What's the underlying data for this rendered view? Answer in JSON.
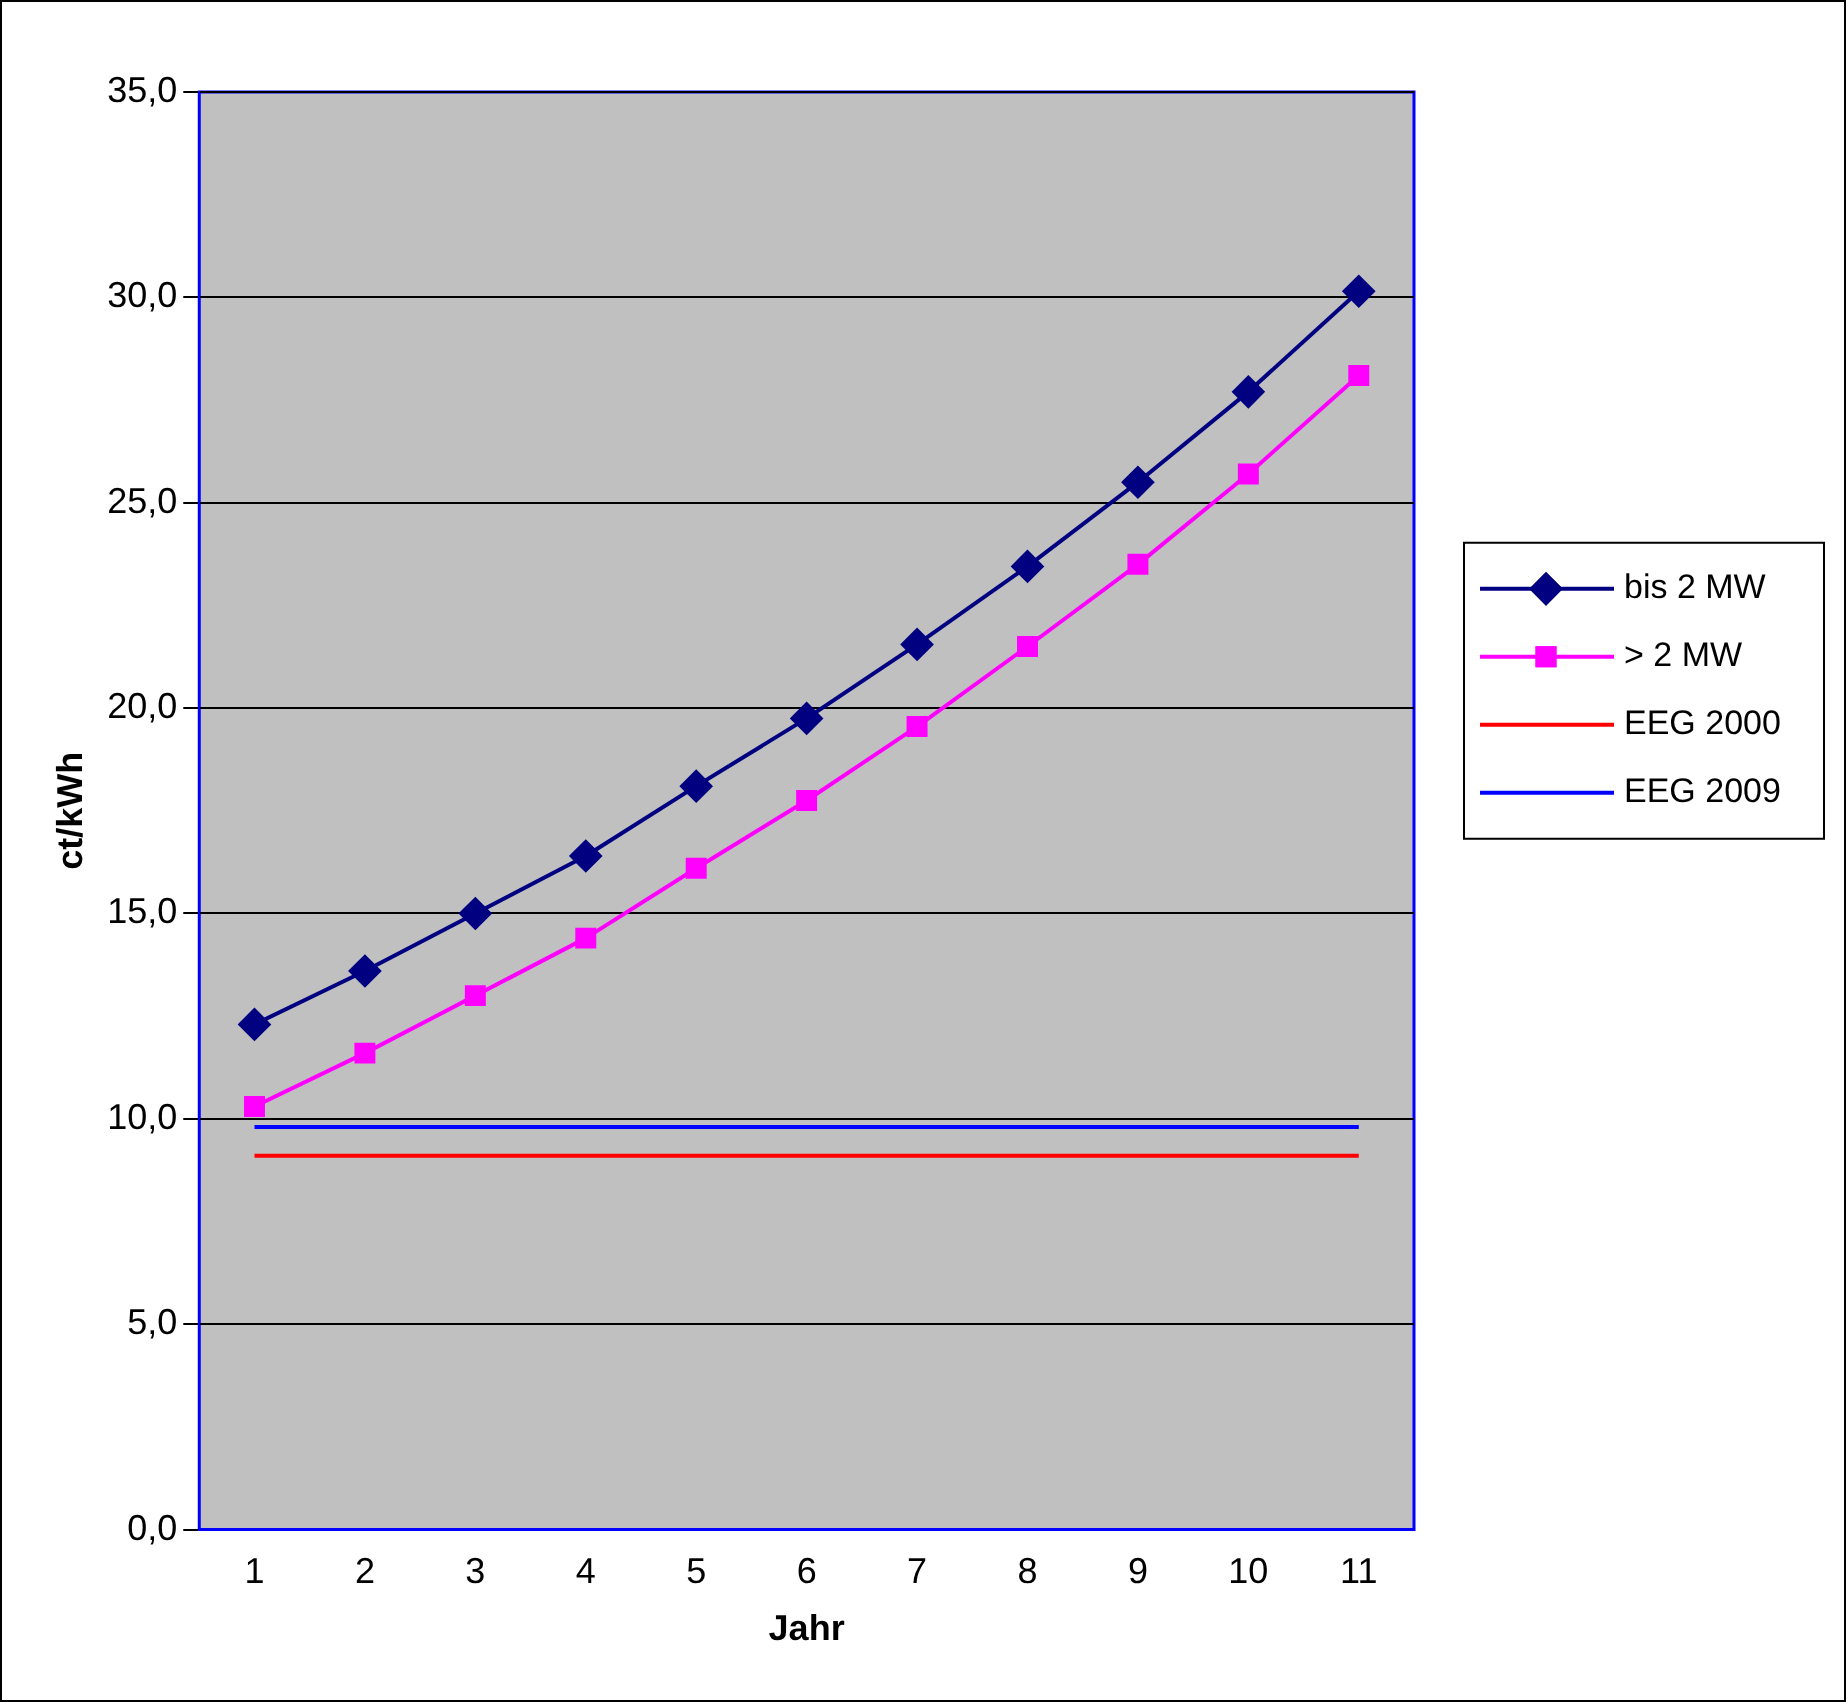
{
  "chart_data": {
    "type": "line",
    "xlabel": "Jahr",
    "ylabel": "ct/kWh",
    "categories": [
      "1",
      "2",
      "3",
      "4",
      "5",
      "6",
      "7",
      "8",
      "9",
      "10",
      "11"
    ],
    "series": [
      {
        "name": "bis 2 MW",
        "color": "#000080",
        "marker": "diamond",
        "values": [
          12.3,
          13.6,
          15.0,
          16.4,
          18.1,
          19.75,
          21.55,
          23.45,
          25.5,
          27.7,
          30.15
        ]
      },
      {
        "name": "> 2 MW",
        "color": "#ff00ff",
        "marker": "square",
        "values": [
          10.3,
          11.6,
          13.0,
          14.4,
          16.1,
          17.75,
          19.55,
          21.5,
          23.5,
          25.7,
          28.1
        ]
      },
      {
        "name": "EEG 2000",
        "color": "#ff0000",
        "marker": "none",
        "values": [
          9.1,
          9.1,
          9.1,
          9.1,
          9.1,
          9.1,
          9.1,
          9.1,
          9.1,
          9.1,
          9.1
        ]
      },
      {
        "name": "EEG 2009",
        "color": "#0000ff",
        "marker": "none",
        "values": [
          9.8,
          9.8,
          9.8,
          9.8,
          9.8,
          9.8,
          9.8,
          9.8,
          9.8,
          9.8,
          9.8
        ]
      }
    ],
    "ylim": [
      0,
      35
    ],
    "yticks": [
      {
        "value": 0,
        "label": "0,0"
      },
      {
        "value": 5,
        "label": "5,0"
      },
      {
        "value": 10,
        "label": "10,0"
      },
      {
        "value": 15,
        "label": "15,0"
      },
      {
        "value": 20,
        "label": "20,0"
      },
      {
        "value": 25,
        "label": "25,0"
      },
      {
        "value": 30,
        "label": "30,0"
      },
      {
        "value": 35,
        "label": "35,0"
      }
    ],
    "grid": "y",
    "legend": "right",
    "line_style": "solid"
  }
}
